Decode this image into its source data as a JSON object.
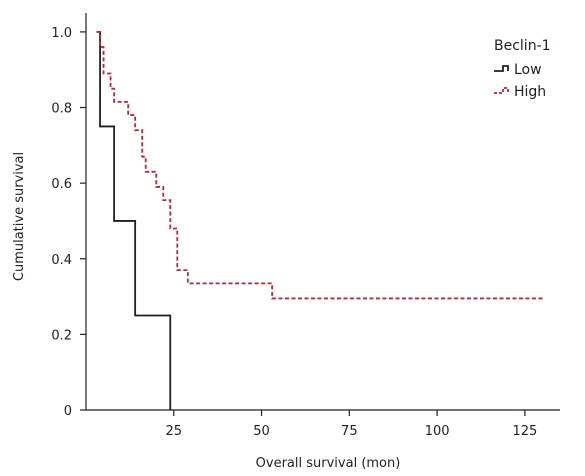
{
  "chart_data": {
    "type": "line",
    "subtype": "kaplan-meier-step",
    "xlabel": "Overall survival (mon)",
    "ylabel": "Cumulative survival",
    "xlim": [
      0,
      135
    ],
    "ylim": [
      0,
      1.05
    ],
    "xticks": [
      25,
      50,
      75,
      100,
      125
    ],
    "yticks": [
      0,
      0.2,
      0.4,
      0.6,
      0.8,
      1.0
    ],
    "ytick_labels": [
      "0",
      "0.2",
      "0.4",
      "0.6",
      "0.8",
      "1.0"
    ],
    "grid": false,
    "legend": {
      "title": "Beclin-1",
      "placement": "top-right"
    },
    "series": [
      {
        "name": "Low",
        "color": "#231f20",
        "style": "solid",
        "steps": [
          [
            3,
            1.0
          ],
          [
            4,
            0.75
          ],
          [
            8,
            0.5
          ],
          [
            14,
            0.25
          ],
          [
            24,
            0.0
          ]
        ]
      },
      {
        "name": "High",
        "color": "#b5283b",
        "style": "dashed",
        "steps": [
          [
            3,
            1.0
          ],
          [
            4,
            0.96
          ],
          [
            5,
            0.89
          ],
          [
            7,
            0.85
          ],
          [
            8,
            0.815
          ],
          [
            12,
            0.78
          ],
          [
            14,
            0.74
          ],
          [
            16,
            0.67
          ],
          [
            17,
            0.63
          ],
          [
            20,
            0.59
          ],
          [
            22,
            0.555
          ],
          [
            24,
            0.48
          ],
          [
            26,
            0.37
          ],
          [
            29,
            0.335
          ],
          [
            53,
            0.295
          ],
          [
            130,
            0.295
          ]
        ]
      }
    ]
  }
}
